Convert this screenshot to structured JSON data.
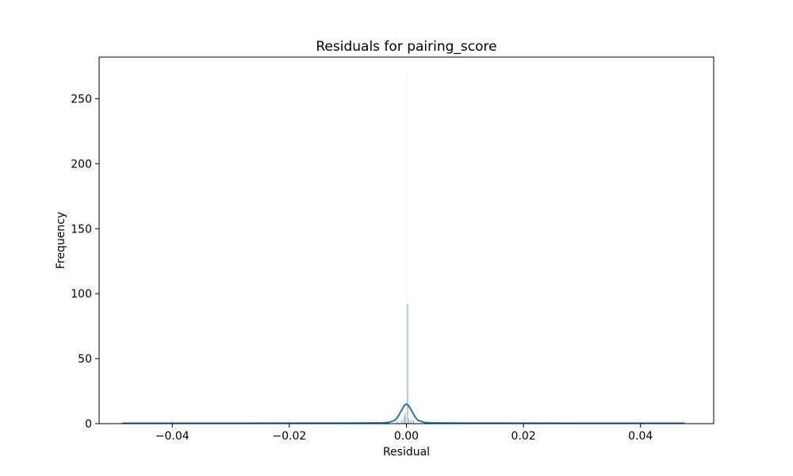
{
  "chart_data": {
    "type": "histogram",
    "title": "Residuals for pairing_score",
    "xlabel": "Residual",
    "ylabel": "Frequency",
    "xlim": [
      -0.0525,
      0.0525
    ],
    "ylim": [
      0,
      282
    ],
    "xticks": [
      -0.04,
      -0.02,
      0.0,
      0.02,
      0.04
    ],
    "xtick_labels": [
      "−0.04",
      "−0.02",
      "0.00",
      "0.02",
      "0.04"
    ],
    "yticks": [
      0,
      50,
      100,
      150,
      200,
      250
    ],
    "ytick_labels": [
      "0",
      "50",
      "100",
      "150",
      "200",
      "250"
    ],
    "grid": false,
    "legend": "none",
    "bar_color": "#8fb2cc",
    "kde_color": "#1f77b4",
    "histogram": {
      "x": [
        -0.0485,
        -0.011,
        -0.0055,
        -0.005,
        -0.0015,
        -0.0008,
        -0.0004,
        -0.0002,
        0.0,
        0.0002,
        0.0004,
        0.0008,
        0.0012,
        0.0065,
        0.0082,
        0.0475
      ],
      "counts": [
        1,
        1,
        1,
        1,
        2,
        3,
        5,
        8,
        270,
        92,
        4,
        3,
        3,
        1,
        1,
        1
      ]
    },
    "kde": {
      "x": [
        -0.0485,
        -0.03,
        -0.01,
        -0.004,
        -0.003,
        -0.002,
        -0.0015,
        -0.001,
        -0.0005,
        -0.00025,
        0.0,
        0.00025,
        0.0005,
        0.001,
        0.0015,
        0.002,
        0.003,
        0.004,
        0.01,
        0.03,
        0.0475
      ],
      "y": [
        0.3,
        0.3,
        0.4,
        0.6,
        1.0,
        2.5,
        5.0,
        9.0,
        13.0,
        14.5,
        15.0,
        14.5,
        13.0,
        9.0,
        5.0,
        2.5,
        1.0,
        0.6,
        0.4,
        0.3,
        0.3
      ]
    }
  }
}
